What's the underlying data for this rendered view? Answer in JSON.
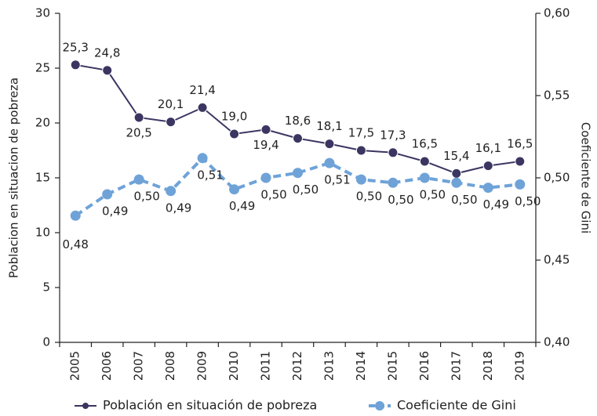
{
  "chart_data": {
    "type": "line",
    "categories": [
      "2005",
      "2006",
      "2007",
      "2008",
      "2009",
      "2010",
      "2011",
      "2012",
      "2013",
      "2014",
      "2015",
      "2016",
      "2017",
      "2018",
      "2019"
    ],
    "y_label": "Poblacion en situacion de pobreza",
    "y2_label": "Coeficiente de Gini",
    "ylim": [
      0,
      30
    ],
    "yticks": [
      0,
      5,
      10,
      15,
      20,
      25,
      30
    ],
    "y2lim": [
      0.4,
      0.6
    ],
    "y2ticks": [
      {
        "value": 0.4,
        "label": "0,40"
      },
      {
        "value": 0.45,
        "label": "0,45"
      },
      {
        "value": 0.5,
        "label": "0,50"
      },
      {
        "value": 0.55,
        "label": "0,55"
      },
      {
        "value": 0.6,
        "label": "0,60"
      }
    ],
    "series": [
      {
        "name": "Población en situación de pobreza",
        "color": "#3b3561",
        "axis": "y",
        "values": [
          25.3,
          24.8,
          20.5,
          20.1,
          21.4,
          19.0,
          19.4,
          18.6,
          18.1,
          17.5,
          17.3,
          16.5,
          15.4,
          16.1,
          16.5
        ],
        "value_labels": [
          "25,3",
          "24,8",
          "20,5",
          "20,1",
          "21,4",
          "19,0",
          "19,4",
          "18,6",
          "18,1",
          "17,5",
          "17,3",
          "16,5",
          "15,4",
          "16,1",
          "16,5"
        ]
      },
      {
        "name": "Coeficiente de Gini",
        "color": "#6fa3d8",
        "axis": "y2",
        "values": [
          0.477,
          0.49,
          0.499,
          0.492,
          0.512,
          0.493,
          0.5,
          0.503,
          0.509,
          0.499,
          0.497,
          0.5,
          0.497,
          0.494,
          0.496
        ],
        "value_labels": [
          "0,48",
          "0,49",
          "0,50",
          "0,49",
          "0,51",
          "0,49",
          "0,50",
          "0,50",
          "0,51",
          "0,50",
          "0,50",
          "0,50",
          "0,50",
          "0,49",
          "0,50"
        ]
      }
    ]
  }
}
